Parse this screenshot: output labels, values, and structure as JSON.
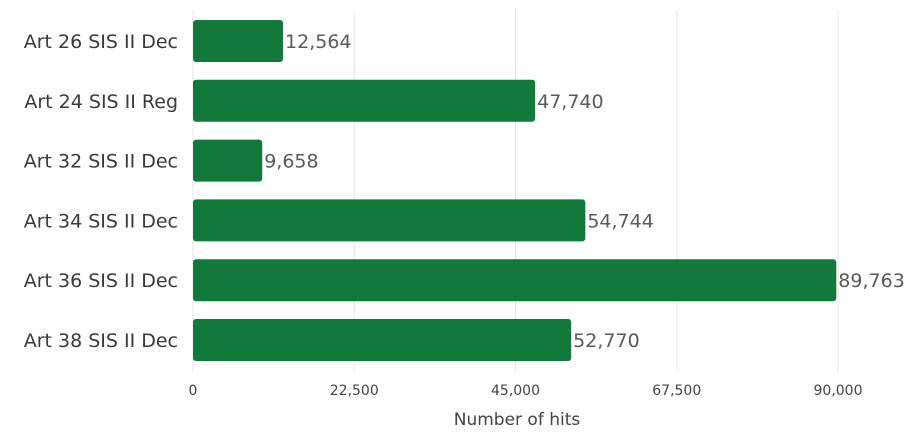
{
  "chart_data": {
    "type": "bar",
    "orientation": "horizontal",
    "categories": [
      "Art 26 SIS II Dec",
      "Art 24 SIS II Reg",
      "Art 32 SIS II Dec",
      "Art 34 SIS II Dec",
      "Art 36 SIS II Dec",
      "Art 38 SIS II Dec"
    ],
    "values": [
      12564,
      47740,
      9658,
      54744,
      89763,
      52770
    ],
    "value_labels": [
      "12,564",
      "47,740",
      "9,658",
      "54,744",
      "89,763",
      "52,770"
    ],
    "xlabel": "Number of hits",
    "xlim": [
      0,
      90000
    ],
    "xticks": [
      0,
      22500,
      45000,
      67500,
      90000
    ],
    "xtick_labels": [
      "0",
      "22,500",
      "45,000",
      "67,500",
      "90,000"
    ],
    "grid": true,
    "bar_color": "#117a3b"
  }
}
